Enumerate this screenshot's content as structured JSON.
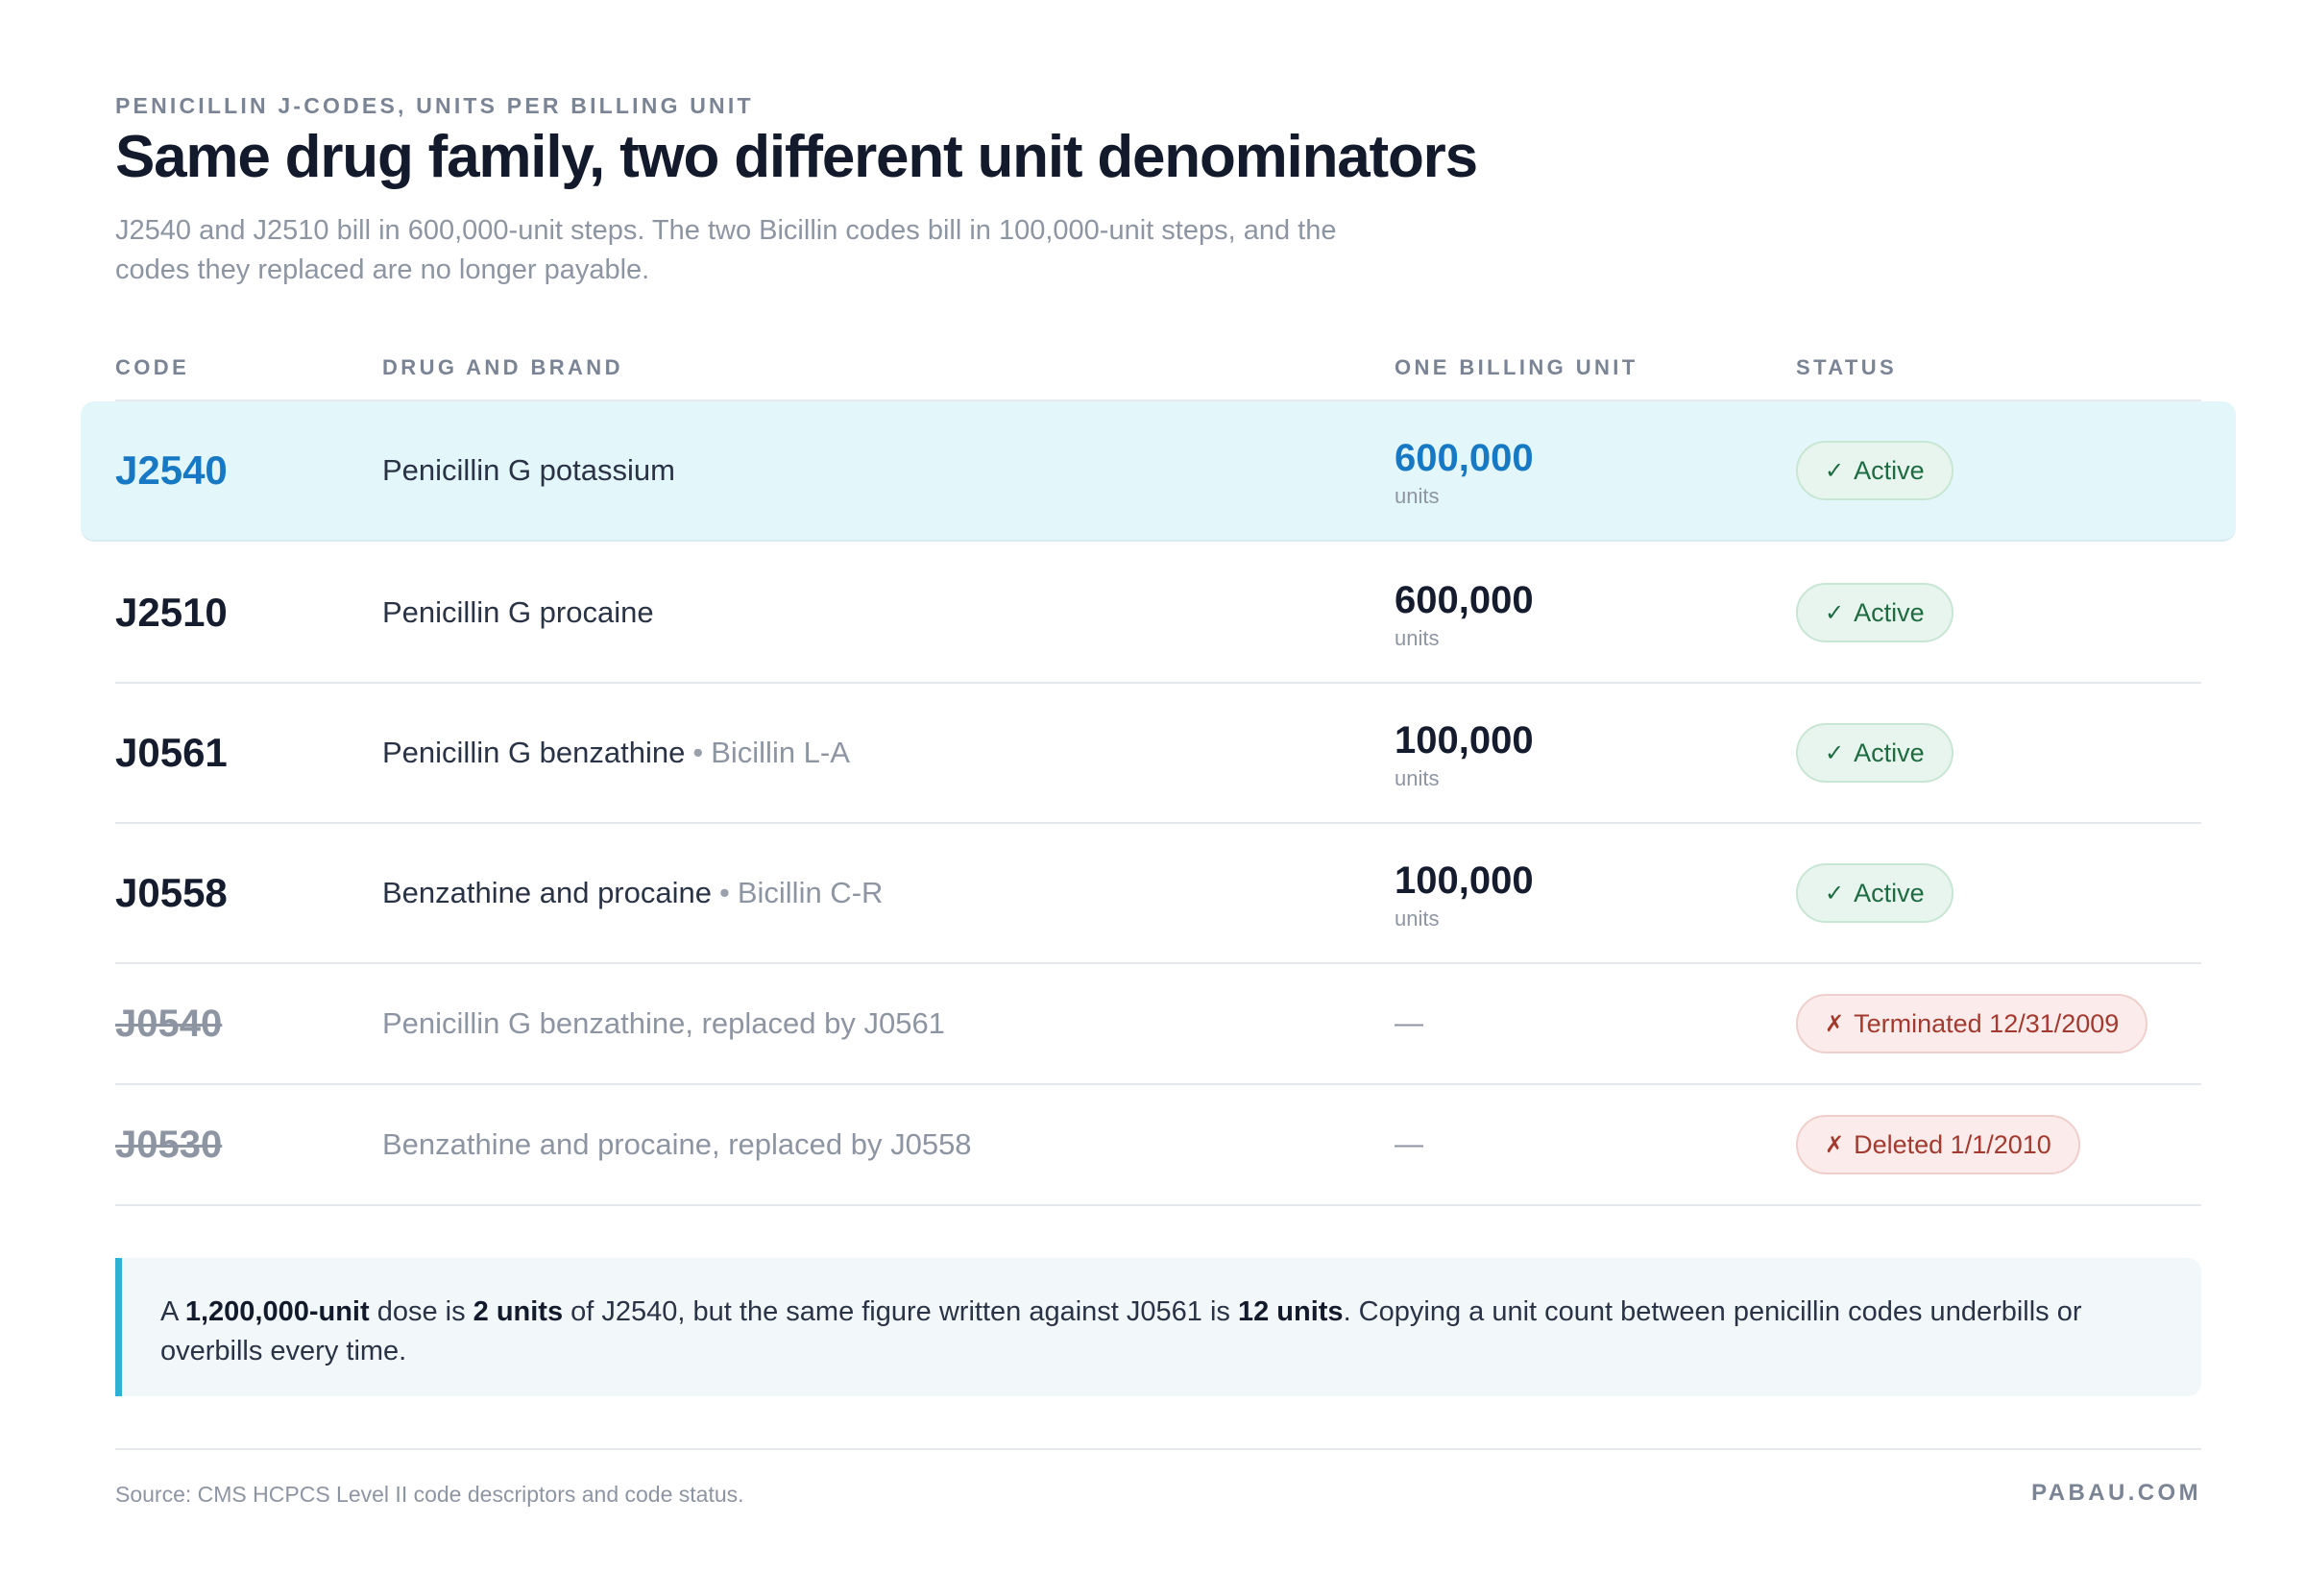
{
  "header": {
    "eyebrow": "PENICILLIN J-CODES, UNITS PER BILLING UNIT",
    "title": "Same drug family, two different unit denominators",
    "subtitle": "J2540 and J2510 bill in 600,000-unit steps. The two Bicillin codes bill in 100,000-unit steps, and the codes they replaced are no longer payable."
  },
  "table": {
    "columns": [
      "CODE",
      "DRUG AND BRAND",
      "ONE BILLING UNIT",
      "STATUS"
    ],
    "rows": [
      {
        "code": "J2540",
        "drug": "Penicillin G potassium",
        "brand": "",
        "unit_value": "600,000",
        "unit_label": "units",
        "status_mark": "✓",
        "status": "Active"
      },
      {
        "code": "J2510",
        "drug": "Penicillin G procaine",
        "brand": "",
        "unit_value": "600,000",
        "unit_label": "units",
        "status_mark": "✓",
        "status": "Active"
      },
      {
        "code": "J0561",
        "drug": "Penicillin G benzathine",
        "brand_sep": "•",
        "brand": "Bicillin L-A",
        "unit_value": "100,000",
        "unit_label": "units",
        "status_mark": "✓",
        "status": "Active"
      },
      {
        "code": "J0558",
        "drug": "Benzathine and procaine",
        "brand_sep": "•",
        "brand": "Bicillin C-R",
        "unit_value": "100,000",
        "unit_label": "units",
        "status_mark": "✓",
        "status": "Active"
      },
      {
        "code": "J0540",
        "drug": "Penicillin G benzathine, replaced by J0561",
        "unit_value": "—",
        "status_mark": "✗",
        "status": "Terminated 12/31/2009"
      },
      {
        "code": "J0530",
        "drug": "Benzathine and procaine, replaced by J0558",
        "unit_value": "—",
        "status_mark": "✗",
        "status": "Deleted 1/1/2010"
      }
    ]
  },
  "note": {
    "p1": "A ",
    "b1": "1,200,000-unit",
    "p2": " dose is ",
    "b2": "2 units",
    "p3": " of J2540, but the same figure written against J0561 is ",
    "b3": "12 units",
    "p4": ". Copying a unit count between penicillin codes underbills or overbills every time."
  },
  "footer": {
    "source": "Source: CMS HCPCS Level II code descriptors and code status.",
    "brand": "PABAU.COM"
  },
  "colors": {
    "accent_blue": "#1779c4",
    "highlight_bg": "#e3f6f9",
    "active_green": "#1f6b41",
    "terminated_red": "#a33a2f",
    "note_bar": "#2bb3d6"
  }
}
